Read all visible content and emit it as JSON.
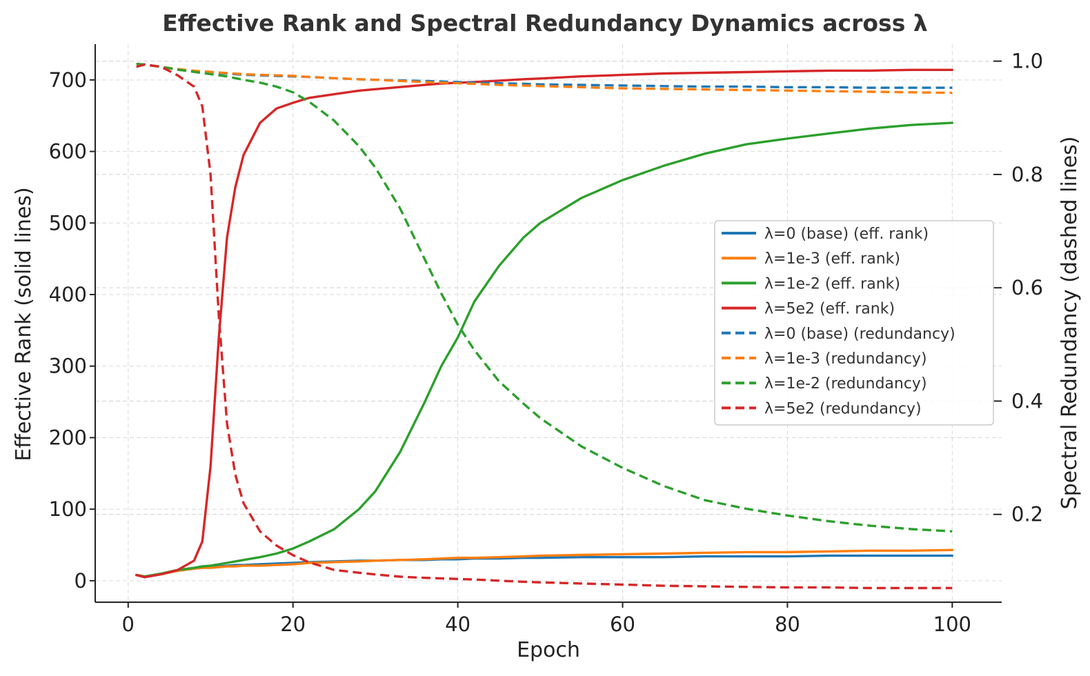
{
  "chart_data": {
    "type": "line",
    "title": "Effective Rank and Spectral Redundancy Dynamics across λ",
    "xlabel": "Epoch",
    "ylabel_left": "Effective Rank (solid lines)",
    "ylabel_right": "Spectral Redundancy (dashed lines)",
    "xlim": [
      -4,
      106
    ],
    "ylim_left": [
      -30,
      750
    ],
    "ylim_right": [
      0.045,
      1.03
    ],
    "x_ticks": [
      0,
      20,
      40,
      60,
      80,
      100
    ],
    "y_left_ticks": [
      0,
      100,
      200,
      300,
      400,
      500,
      600,
      700
    ],
    "y_right_ticks": [
      0.2,
      0.4,
      0.6,
      0.8,
      1.0
    ],
    "y_right_tick_labels": [
      "0.2",
      "0.4",
      "0.6",
      "0.8",
      "1.0"
    ],
    "legend_position": "center-right",
    "x": [
      1,
      2,
      4,
      6,
      8,
      9,
      10,
      11,
      12,
      13,
      14,
      16,
      18,
      20,
      22,
      25,
      28,
      30,
      33,
      36,
      38,
      40,
      42,
      45,
      48,
      50,
      55,
      60,
      65,
      70,
      75,
      80,
      85,
      90,
      95,
      100
    ],
    "series": [
      {
        "name": "λ=0 (base) (eff. rank)",
        "axis": "left",
        "style": "solid",
        "color": "#1f77b4",
        "values": [
          8,
          5,
          9,
          14,
          17,
          18,
          19,
          20,
          21,
          22,
          22,
          23,
          24,
          25,
          26,
          27,
          28,
          28,
          29,
          29,
          30,
          30,
          31,
          31,
          32,
          32,
          33,
          33,
          33,
          34,
          34,
          34,
          35,
          35,
          35,
          35
        ]
      },
      {
        "name": "λ=1e-3 (eff. rank)",
        "axis": "left",
        "style": "solid",
        "color": "#ff7f0e",
        "values": [
          8,
          6,
          9,
          14,
          17,
          18,
          18,
          19,
          20,
          20,
          21,
          21,
          22,
          23,
          25,
          26,
          27,
          28,
          29,
          30,
          31,
          32,
          32,
          33,
          34,
          35,
          36,
          37,
          38,
          39,
          40,
          40,
          41,
          42,
          42,
          43
        ]
      },
      {
        "name": "λ=1e-2 (eff. rank)",
        "axis": "left",
        "style": "solid",
        "color": "#2ca02c",
        "values": [
          8,
          6,
          10,
          15,
          18,
          20,
          21,
          23,
          25,
          27,
          29,
          33,
          38,
          45,
          55,
          72,
          100,
          125,
          180,
          250,
          300,
          340,
          390,
          440,
          480,
          500,
          535,
          560,
          580,
          597,
          610,
          618,
          625,
          632,
          637,
          640
        ]
      },
      {
        "name": "λ=5e2 (eff. rank)",
        "axis": "left",
        "style": "solid",
        "color": "#d62728",
        "values": [
          8,
          5,
          9,
          15,
          28,
          55,
          160,
          340,
          480,
          550,
          595,
          640,
          660,
          668,
          675,
          680,
          685,
          687,
          690,
          693,
          695,
          696,
          697,
          699,
          701,
          702,
          705,
          707,
          709,
          710,
          711,
          712,
          713,
          713,
          714,
          714
        ]
      },
      {
        "name": "λ=0 (base) (redundancy)",
        "axis": "right",
        "style": "dashed",
        "color": "#1f77b4",
        "values": [
          0.995,
          0.994,
          0.99,
          0.985,
          0.982,
          0.981,
          0.98,
          0.979,
          0.978,
          0.977,
          0.976,
          0.975,
          0.974,
          0.973,
          0.972,
          0.97,
          0.968,
          0.967,
          0.966,
          0.965,
          0.964,
          0.963,
          0.962,
          0.961,
          0.96,
          0.959,
          0.958,
          0.957,
          0.956,
          0.955,
          0.955,
          0.954,
          0.954,
          0.953,
          0.953,
          0.953
        ]
      },
      {
        "name": "λ=1e-3 (redundancy)",
        "axis": "right",
        "style": "dashed",
        "color": "#ff7f0e",
        "values": [
          0.995,
          0.994,
          0.99,
          0.986,
          0.983,
          0.982,
          0.981,
          0.98,
          0.979,
          0.978,
          0.977,
          0.976,
          0.975,
          0.974,
          0.972,
          0.97,
          0.968,
          0.967,
          0.965,
          0.963,
          0.962,
          0.961,
          0.96,
          0.958,
          0.957,
          0.956,
          0.954,
          0.952,
          0.951,
          0.95,
          0.949,
          0.948,
          0.947,
          0.946,
          0.945,
          0.944
        ]
      },
      {
        "name": "λ=1e-2 (redundancy)",
        "axis": "right",
        "style": "dashed",
        "color": "#2ca02c",
        "values": [
          0.995,
          0.994,
          0.99,
          0.985,
          0.981,
          0.979,
          0.977,
          0.975,
          0.973,
          0.97,
          0.967,
          0.962,
          0.955,
          0.945,
          0.928,
          0.895,
          0.85,
          0.812,
          0.74,
          0.65,
          0.59,
          0.535,
          0.49,
          0.435,
          0.395,
          0.37,
          0.32,
          0.282,
          0.25,
          0.225,
          0.21,
          0.198,
          0.188,
          0.18,
          0.174,
          0.17
        ]
      },
      {
        "name": "λ=5e2 (redundancy)",
        "axis": "right",
        "style": "dashed",
        "color": "#d62728",
        "values": [
          0.99,
          0.994,
          0.99,
          0.975,
          0.955,
          0.92,
          0.8,
          0.55,
          0.36,
          0.27,
          0.22,
          0.17,
          0.145,
          0.128,
          0.115,
          0.102,
          0.097,
          0.094,
          0.09,
          0.088,
          0.087,
          0.086,
          0.085,
          0.083,
          0.081,
          0.08,
          0.078,
          0.076,
          0.074,
          0.073,
          0.072,
          0.071,
          0.071,
          0.07,
          0.07,
          0.07
        ]
      }
    ]
  }
}
